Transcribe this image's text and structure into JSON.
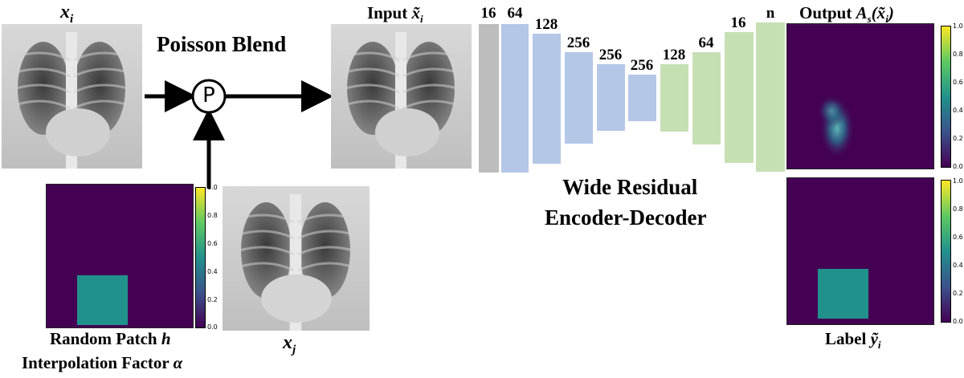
{
  "labels": {
    "x_i": "x",
    "x_i_sub": "i",
    "poisson_blend": "Poisson Blend",
    "blend_op": "P",
    "input_prefix": "Input ",
    "input_var": "x̃",
    "input_sub": "i",
    "output_prefix": "Output ",
    "output_var": "A",
    "output_sub": "s",
    "output_arg": "(x̃",
    "output_arg_sub": "i",
    "output_close": ")",
    "x_j": "x",
    "x_j_sub": "j",
    "random_patch": "Random Patch ",
    "random_patch_var": "h",
    "interp_factor": "Interpolation Factor ",
    "interp_var": "α",
    "network_line1": "Wide Residual",
    "network_line2": "Encoder-Decoder",
    "label_prefix": "Label ",
    "label_var": "ỹ",
    "label_sub": "i"
  },
  "network": {
    "layers": [
      {
        "label": "16",
        "type": "input"
      },
      {
        "label": "64",
        "type": "encoder"
      },
      {
        "label": "128",
        "type": "encoder"
      },
      {
        "label": "256",
        "type": "encoder"
      },
      {
        "label": "256",
        "type": "encoder"
      },
      {
        "label": "256",
        "type": "encoder"
      },
      {
        "label": "128",
        "type": "decoder"
      },
      {
        "label": "64",
        "type": "decoder"
      },
      {
        "label": "16",
        "type": "decoder"
      },
      {
        "label": "n",
        "type": "decoder"
      }
    ]
  },
  "colorbar": {
    "ticks": [
      "1.0",
      "0.8",
      "0.6",
      "0.4",
      "0.2",
      "0.0"
    ]
  },
  "colors": {
    "gray": "#bdbdbd",
    "encoder": "#b4c7e7",
    "decoder": "#c6e0b4",
    "viridis_low": "#440154",
    "patch": "#21918c"
  }
}
